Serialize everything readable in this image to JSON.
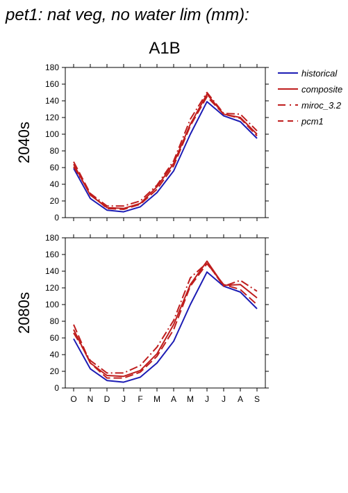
{
  "title": "pet1: nat veg, no water lim (mm):",
  "scenario": "A1B",
  "colors": {
    "historical": "#1c1cb4",
    "scenario": "#bf1d1d"
  },
  "chart_data": [
    {
      "type": "line",
      "panel_label": "2040s",
      "categories": [
        "O",
        "N",
        "D",
        "J",
        "F",
        "M",
        "A",
        "M",
        "J",
        "J",
        "A",
        "S"
      ],
      "ylim": [
        0,
        180
      ],
      "yticks": [
        0,
        20,
        40,
        60,
        80,
        100,
        120,
        140,
        160,
        180
      ],
      "grid": false,
      "legend": "right",
      "series": [
        {
          "name": "historical",
          "values": [
            59,
            23,
            9,
            7,
            13,
            30,
            56,
            100,
            139,
            122,
            115,
            95
          ]
        },
        {
          "name": "composite",
          "values": [
            64,
            27,
            12,
            11,
            17,
            37,
            65,
            112,
            148,
            124,
            120,
            100
          ]
        },
        {
          "name": "miroc_3.2",
          "values": [
            61,
            29,
            14,
            14,
            20,
            39,
            68,
            118,
            150,
            125,
            124,
            104
          ]
        },
        {
          "name": "pcm1",
          "values": [
            67,
            29,
            11,
            10,
            16,
            34,
            62,
            110,
            145,
            124,
            119,
            98
          ]
        }
      ]
    },
    {
      "type": "line",
      "panel_label": "2080s",
      "categories": [
        "O",
        "N",
        "D",
        "J",
        "F",
        "M",
        "A",
        "M",
        "J",
        "J",
        "A",
        "S"
      ],
      "ylim": [
        0,
        180
      ],
      "yticks": [
        0,
        20,
        40,
        60,
        80,
        100,
        120,
        140,
        160,
        180
      ],
      "grid": false,
      "legend": "none",
      "series": [
        {
          "name": "historical",
          "values": [
            59,
            23,
            9,
            7,
            13,
            30,
            56,
            100,
            139,
            122,
            115,
            95
          ]
        },
        {
          "name": "composite",
          "values": [
            70,
            30,
            15,
            14,
            21,
            41,
            76,
            124,
            152,
            123,
            124,
            108
          ]
        },
        {
          "name": "miroc_3.2",
          "values": [
            66,
            33,
            18,
            18,
            27,
            49,
            81,
            132,
            150,
            122,
            129,
            116
          ]
        },
        {
          "name": "pcm1",
          "values": [
            76,
            30,
            12,
            12,
            19,
            38,
            70,
            122,
            149,
            124,
            118,
            100
          ]
        }
      ]
    }
  ],
  "legend_items": [
    {
      "name": "historical",
      "dash": "solid",
      "color_key": "historical"
    },
    {
      "name": "composite",
      "dash": "solid",
      "color_key": "scenario"
    },
    {
      "name": "miroc_3.2",
      "dash": "dashdot",
      "color_key": "scenario"
    },
    {
      "name": "pcm1",
      "dash": "dashed",
      "color_key": "scenario"
    }
  ]
}
